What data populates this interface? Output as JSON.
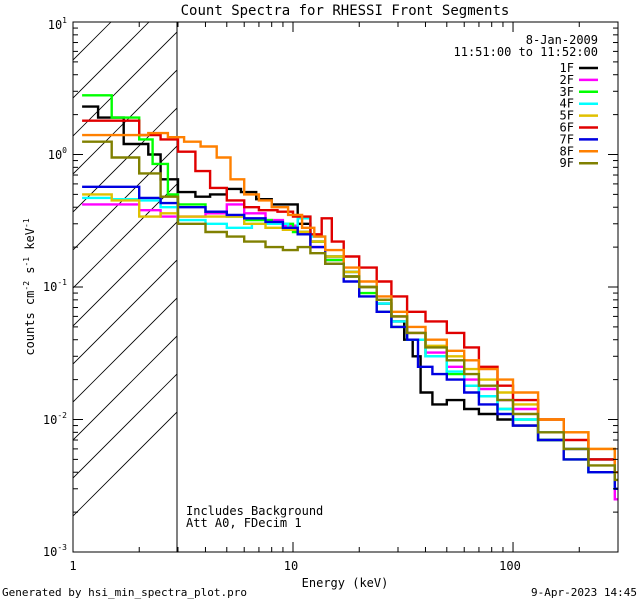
{
  "chart_data": {
    "type": "line",
    "title": "Count Spectra for RHESSI Front Segments",
    "xlabel": "Energy (keV)",
    "ylabel_parts": [
      "counts cm",
      "-2",
      " s",
      "-1",
      " keV",
      "-1"
    ],
    "xscale": "log",
    "yscale": "log",
    "xlim": [
      1,
      300
    ],
    "ylim": [
      0.001,
      10
    ],
    "x_tick_labels": [
      "1",
      "10",
      "100"
    ],
    "y_tick_labels": [
      {
        "base": "10",
        "exp": "-3"
      },
      {
        "base": "10",
        "exp": "-2"
      },
      {
        "base": "10",
        "exp": "-1"
      },
      {
        "base": "10",
        "exp": "0"
      },
      {
        "base": "10",
        "exp": "1"
      }
    ],
    "hatched_region_keV": [
      1,
      3
    ],
    "date": "8-Jan-2009",
    "time_range": "11:51:00 to 11:52:00",
    "annotations": [
      "Includes Background",
      "Att A0, FDecim 1"
    ],
    "footer_left": "Generated by hsi_min_spectra_plot.pro",
    "footer_right": "9-Apr-2023 14:45",
    "series": [
      {
        "name": "1F",
        "color": "#000000",
        "points": [
          [
            1.1,
            2.3
          ],
          [
            1.3,
            1.9
          ],
          [
            1.7,
            1.2
          ],
          [
            2.2,
            1.0
          ],
          [
            2.5,
            0.65
          ],
          [
            3.0,
            0.52
          ],
          [
            3.6,
            0.48
          ],
          [
            4.2,
            0.5
          ],
          [
            5.0,
            0.55
          ],
          [
            5.8,
            0.52
          ],
          [
            6.8,
            0.46
          ],
          [
            8.0,
            0.42
          ],
          [
            9.4,
            0.42
          ],
          [
            10.5,
            0.3
          ],
          [
            12,
            0.22
          ],
          [
            14,
            0.17
          ],
          [
            17,
            0.13
          ],
          [
            20,
            0.1
          ],
          [
            24,
            0.075
          ],
          [
            28,
            0.055
          ],
          [
            32,
            0.04
          ],
          [
            35,
            0.03
          ],
          [
            38,
            0.016
          ],
          [
            43,
            0.013
          ],
          [
            50,
            0.014
          ],
          [
            60,
            0.012
          ],
          [
            70,
            0.011
          ],
          [
            85,
            0.01
          ],
          [
            100,
            0.009
          ],
          [
            130,
            0.007
          ],
          [
            170,
            0.006
          ],
          [
            220,
            0.005
          ],
          [
            290,
            0.004
          ]
        ]
      },
      {
        "name": "2F",
        "color": "#ff00ff",
        "points": [
          [
            1.1,
            0.42
          ],
          [
            1.5,
            0.42
          ],
          [
            2.0,
            0.38
          ],
          [
            2.5,
            0.34
          ],
          [
            3.0,
            0.34
          ],
          [
            4.0,
            0.36
          ],
          [
            5.0,
            0.42
          ],
          [
            6.0,
            0.36
          ],
          [
            7.5,
            0.32
          ],
          [
            9.0,
            0.29
          ],
          [
            10.5,
            0.26
          ],
          [
            12,
            0.2
          ],
          [
            14,
            0.16
          ],
          [
            17,
            0.12
          ],
          [
            20,
            0.1
          ],
          [
            24,
            0.08
          ],
          [
            28,
            0.06
          ],
          [
            33,
            0.045
          ],
          [
            40,
            0.032
          ],
          [
            50,
            0.025
          ],
          [
            60,
            0.02
          ],
          [
            70,
            0.017
          ],
          [
            85,
            0.014
          ],
          [
            100,
            0.012
          ],
          [
            130,
            0.008
          ],
          [
            170,
            0.006
          ],
          [
            220,
            0.004
          ],
          [
            290,
            0.0025
          ]
        ]
      },
      {
        "name": "3F",
        "color": "#00ff00",
        "points": [
          [
            1.1,
            2.8
          ],
          [
            1.3,
            2.8
          ],
          [
            1.5,
            1.9
          ],
          [
            1.8,
            1.9
          ],
          [
            2.0,
            1.3
          ],
          [
            2.3,
            0.85
          ],
          [
            2.7,
            0.5
          ],
          [
            3.0,
            0.42
          ],
          [
            4.0,
            0.37
          ],
          [
            5.0,
            0.34
          ],
          [
            6.0,
            0.32
          ],
          [
            8.0,
            0.3
          ],
          [
            10.0,
            0.26
          ],
          [
            12,
            0.22
          ],
          [
            14,
            0.16
          ],
          [
            17,
            0.12
          ],
          [
            20,
            0.09
          ],
          [
            24,
            0.065
          ],
          [
            28,
            0.05
          ],
          [
            33,
            0.04
          ],
          [
            40,
            0.03
          ],
          [
            50,
            0.022
          ],
          [
            60,
            0.018
          ],
          [
            70,
            0.015
          ],
          [
            85,
            0.012
          ],
          [
            100,
            0.01
          ],
          [
            130,
            0.007
          ],
          [
            170,
            0.005
          ],
          [
            220,
            0.004
          ],
          [
            290,
            0.003
          ]
        ]
      },
      {
        "name": "4F",
        "color": "#00ffff",
        "points": [
          [
            1.1,
            0.47
          ],
          [
            1.5,
            0.46
          ],
          [
            2.0,
            0.45
          ],
          [
            2.5,
            0.4
          ],
          [
            3.0,
            0.32
          ],
          [
            4.0,
            0.3
          ],
          [
            5.0,
            0.28
          ],
          [
            6.5,
            0.3
          ],
          [
            8.0,
            0.3
          ],
          [
            9.5,
            0.28
          ],
          [
            10.5,
            0.33
          ],
          [
            12,
            0.24
          ],
          [
            14,
            0.17
          ],
          [
            17,
            0.13
          ],
          [
            20,
            0.1
          ],
          [
            24,
            0.075
          ],
          [
            28,
            0.055
          ],
          [
            33,
            0.04
          ],
          [
            40,
            0.03
          ],
          [
            50,
            0.023
          ],
          [
            60,
            0.018
          ],
          [
            70,
            0.015
          ],
          [
            85,
            0.012
          ],
          [
            100,
            0.01
          ],
          [
            130,
            0.008
          ],
          [
            170,
            0.006
          ],
          [
            220,
            0.004
          ],
          [
            290,
            0.003
          ]
        ]
      },
      {
        "name": "5F",
        "color": "#e0c000",
        "points": [
          [
            1.1,
            0.5
          ],
          [
            1.5,
            0.45
          ],
          [
            2.0,
            0.34
          ],
          [
            2.5,
            0.36
          ],
          [
            3.0,
            0.34
          ],
          [
            4.0,
            0.34
          ],
          [
            5.0,
            0.34
          ],
          [
            6.0,
            0.3
          ],
          [
            7.5,
            0.28
          ],
          [
            9.0,
            0.27
          ],
          [
            10.5,
            0.26
          ],
          [
            12,
            0.22
          ],
          [
            14,
            0.17
          ],
          [
            17,
            0.13
          ],
          [
            20,
            0.1
          ],
          [
            24,
            0.08
          ],
          [
            28,
            0.06
          ],
          [
            33,
            0.045
          ],
          [
            40,
            0.036
          ],
          [
            50,
            0.03
          ],
          [
            60,
            0.024
          ],
          [
            70,
            0.02
          ],
          [
            85,
            0.016
          ],
          [
            100,
            0.013
          ],
          [
            130,
            0.01
          ],
          [
            170,
            0.008
          ],
          [
            220,
            0.006
          ],
          [
            290,
            0.004
          ]
        ]
      },
      {
        "name": "6F",
        "color": "#e00000",
        "points": [
          [
            1.1,
            1.8
          ],
          [
            1.5,
            1.8
          ],
          [
            2.0,
            1.4
          ],
          [
            2.5,
            1.3
          ],
          [
            3.0,
            1.05
          ],
          [
            3.6,
            0.75
          ],
          [
            4.2,
            0.56
          ],
          [
            5.0,
            0.45
          ],
          [
            6.0,
            0.4
          ],
          [
            7.0,
            0.38
          ],
          [
            8.5,
            0.37
          ],
          [
            10,
            0.34
          ],
          [
            12,
            0.25
          ],
          [
            13.5,
            0.33
          ],
          [
            15,
            0.22
          ],
          [
            17,
            0.17
          ],
          [
            20,
            0.14
          ],
          [
            24,
            0.11
          ],
          [
            28,
            0.085
          ],
          [
            33,
            0.065
          ],
          [
            40,
            0.055
          ],
          [
            50,
            0.045
          ],
          [
            60,
            0.035
          ],
          [
            70,
            0.025
          ],
          [
            85,
            0.018
          ],
          [
            100,
            0.014
          ],
          [
            130,
            0.01
          ],
          [
            170,
            0.007
          ],
          [
            220,
            0.005
          ],
          [
            290,
            0.004
          ]
        ]
      },
      {
        "name": "7F",
        "color": "#0000e0",
        "points": [
          [
            1.1,
            0.57
          ],
          [
            1.5,
            0.57
          ],
          [
            2.0,
            0.47
          ],
          [
            2.5,
            0.43
          ],
          [
            3.0,
            0.4
          ],
          [
            4.0,
            0.37
          ],
          [
            5.0,
            0.35
          ],
          [
            6.0,
            0.33
          ],
          [
            7.5,
            0.31
          ],
          [
            9.0,
            0.28
          ],
          [
            10.5,
            0.25
          ],
          [
            12,
            0.2
          ],
          [
            14,
            0.15
          ],
          [
            17,
            0.11
          ],
          [
            20,
            0.085
          ],
          [
            24,
            0.065
          ],
          [
            28,
            0.05
          ],
          [
            33,
            0.04
          ],
          [
            37,
            0.025
          ],
          [
            43,
            0.022
          ],
          [
            50,
            0.02
          ],
          [
            60,
            0.016
          ],
          [
            70,
            0.013
          ],
          [
            85,
            0.011
          ],
          [
            100,
            0.009
          ],
          [
            130,
            0.007
          ],
          [
            170,
            0.005
          ],
          [
            220,
            0.004
          ],
          [
            290,
            0.003
          ]
        ]
      },
      {
        "name": "8F",
        "color": "#ff8000",
        "points": [
          [
            1.1,
            1.4
          ],
          [
            1.6,
            1.4
          ],
          [
            2.2,
            1.45
          ],
          [
            2.7,
            1.35
          ],
          [
            3.2,
            1.25
          ],
          [
            3.8,
            1.15
          ],
          [
            4.5,
            0.95
          ],
          [
            5.2,
            0.65
          ],
          [
            6.0,
            0.5
          ],
          [
            7.0,
            0.45
          ],
          [
            8.0,
            0.4
          ],
          [
            9.5,
            0.35
          ],
          [
            11,
            0.28
          ],
          [
            12.5,
            0.24
          ],
          [
            14,
            0.19
          ],
          [
            17,
            0.14
          ],
          [
            20,
            0.11
          ],
          [
            24,
            0.085
          ],
          [
            28,
            0.065
          ],
          [
            33,
            0.05
          ],
          [
            40,
            0.04
          ],
          [
            50,
            0.033
          ],
          [
            60,
            0.028
          ],
          [
            70,
            0.024
          ],
          [
            85,
            0.02
          ],
          [
            100,
            0.016
          ],
          [
            130,
            0.01
          ],
          [
            170,
            0.008
          ],
          [
            220,
            0.006
          ],
          [
            290,
            0.004
          ]
        ]
      },
      {
        "name": "9F",
        "color": "#808000",
        "points": [
          [
            1.1,
            1.25
          ],
          [
            1.5,
            0.95
          ],
          [
            2.0,
            0.72
          ],
          [
            2.5,
            0.48
          ],
          [
            3.0,
            0.3
          ],
          [
            4.0,
            0.26
          ],
          [
            5.0,
            0.24
          ],
          [
            6.0,
            0.22
          ],
          [
            7.5,
            0.2
          ],
          [
            9.0,
            0.19
          ],
          [
            10.5,
            0.2
          ],
          [
            12,
            0.18
          ],
          [
            14,
            0.15
          ],
          [
            17,
            0.12
          ],
          [
            20,
            0.1
          ],
          [
            24,
            0.08
          ],
          [
            28,
            0.06
          ],
          [
            33,
            0.045
          ],
          [
            40,
            0.035
          ],
          [
            50,
            0.028
          ],
          [
            60,
            0.022
          ],
          [
            70,
            0.018
          ],
          [
            85,
            0.014
          ],
          [
            100,
            0.011
          ],
          [
            130,
            0.008
          ],
          [
            170,
            0.006
          ],
          [
            220,
            0.0045
          ],
          [
            290,
            0.0035
          ]
        ]
      }
    ]
  }
}
